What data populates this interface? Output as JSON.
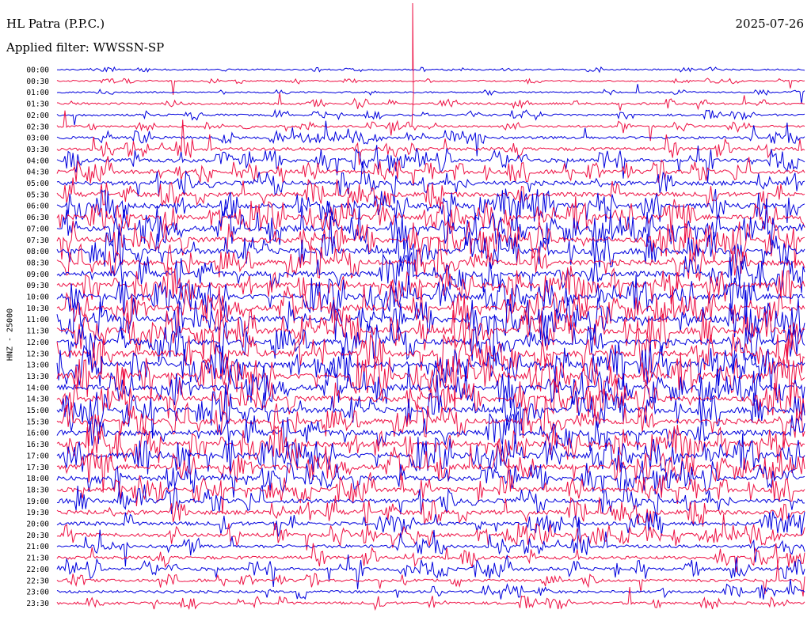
{
  "header": {
    "station": "HL Patra (P.P.C.)",
    "date": "2025-07-26",
    "filter": "Applied filter: WWSSN-SP"
  },
  "channel_label": "HNZ - 25000",
  "colors": {
    "trace_a": "#0000dd",
    "trace_b": "#ee1144",
    "background": "#ffffff"
  },
  "chart_data": {
    "type": "line",
    "title": "HL Patra (P.P.C.)",
    "subtitle": "Applied filter: WWSSN-SP",
    "ylabel": "HNZ - 25000",
    "xlabel": "",
    "rows": [
      "00:00",
      "00:30",
      "01:00",
      "01:30",
      "02:00",
      "02:30",
      "03:00",
      "03:30",
      "04:00",
      "04:30",
      "05:00",
      "05:30",
      "06:00",
      "06:30",
      "07:00",
      "07:30",
      "08:00",
      "08:30",
      "09:00",
      "09:30",
      "10:00",
      "10:30",
      "11:00",
      "11:30",
      "12:00",
      "12:30",
      "13:00",
      "13:30",
      "14:00",
      "14:30",
      "15:00",
      "15:30",
      "16:00",
      "16:30",
      "17:00",
      "17:30",
      "18:00",
      "18:30",
      "19:00",
      "19:30",
      "20:00",
      "20:30",
      "21:00",
      "21:30",
      "22:00",
      "22:30",
      "23:00",
      "23:30"
    ],
    "row_minutes": 30,
    "activity_by_row": [
      1,
      1,
      1,
      2,
      2,
      2,
      3,
      4,
      5,
      5,
      6,
      6,
      7,
      7,
      8,
      8,
      8,
      8,
      8,
      8,
      8,
      8,
      9,
      9,
      9,
      9,
      9,
      9,
      8,
      8,
      8,
      8,
      8,
      8,
      8,
      7,
      7,
      6,
      6,
      6,
      5,
      5,
      4,
      4,
      4,
      3,
      3,
      3
    ],
    "series_colors": [
      "#0000dd",
      "#ee1144"
    ],
    "grid": false,
    "legend": "none"
  }
}
